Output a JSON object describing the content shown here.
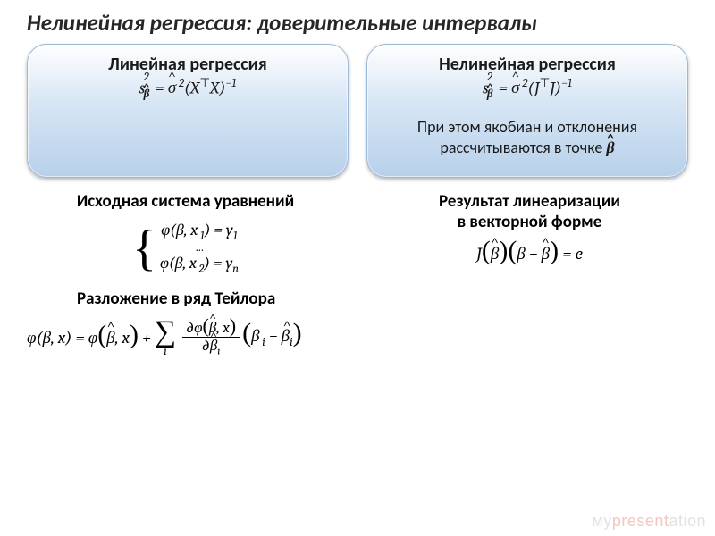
{
  "title": "Нелинейная регрессия: доверительные интервалы",
  "box_left": {
    "title": "Линейная регрессия",
    "formula_html": "s<span style='position:relative'><sub style='position:relative;left:-2px'><b><span class='hat hat-bold'>β</span></b></sub><sup style='position:absolute;left:-2px;top:-0.6em'>2</sup></span>&nbsp;= <span class='hat'>σ</span><sup>&#8201;2</sup>(X<sup><span class='upright'>⊤</span></sup>X)<sup>−1</sup>"
  },
  "box_right": {
    "title": "Нелинейная регрессия",
    "formula_html": "s<span style='position:relative'><sub style='position:relative;left:-2px'><b><span class='hat hat-bold'>β</span></b></sub><sup style='position:absolute;left:-2px;top:-0.6em'>2</sup></span>&nbsp;= <span class='hat'>σ</span><sup>&#8201;2</sup>(J<sup><span class='upright'>⊤</span></sup>J)<sup>−1</sup>",
    "note_html": "При этом якобиан и отклонения рассчитываются в точке <b><span class='hat hat-bold' style='font-style:italic;font-family:Cambria,serif'>β</span></b>"
  },
  "left_col": {
    "title": "Исходная система уравнений",
    "eq1_html": "φ(β,&#8201;x<sub>&#8201;1</sub>) = y<sub>1</sub>",
    "dots": "…",
    "eq2_html": "φ(β,&#8201;x<sub>&#8201;2</sub>) = y<sub>n</sub>"
  },
  "right_col": {
    "title_html": "Результат линеаризации<br>в векторной форме",
    "formula_html": "J<span class='big-paren'>(</span><span class='hat'>β</span><span class='big-paren'>)</span><span class='big-paren'>(</span>β − <span class='hat'>β</span><span class='big-paren'>)</span> = e"
  },
  "taylor": {
    "title": "Разложение в ряд Тейлора",
    "lhs_html": "φ(β,&#8201;x) = φ<span class='big-paren'>(</span><span class='hat'>β</span>,&#8201;x<span class='big-paren'>)</span> + ",
    "frac_num_html": "∂φ<span class='big-paren' style='font-size:22px'>(</span><span class='hat'>β</span>,&#8201;x<span class='big-paren' style='font-size:22px'>)</span>",
    "frac_den_html": "∂<span class='hat'>β</span><sub>i</sub>",
    "tail_html": "<span class='big-paren'>(</span>β<sub>&#8201;i</sub> − <span class='hat'>β<sub>i</sub></span><span class='big-paren'>)</span>",
    "sigma_sub": "i"
  },
  "watermark": {
    "pre": "му",
    "red": "present",
    "post": "ation"
  },
  "colors": {
    "box_grad_top": "#ffffff",
    "box_grad_mid": "#d6e5f4",
    "box_grad_bot": "#b7d0ea",
    "box_border": "#9bb8d6",
    "title_color": "#262626",
    "watermark_gray": "#e2e2e2",
    "watermark_red": "#f3c7c0"
  }
}
